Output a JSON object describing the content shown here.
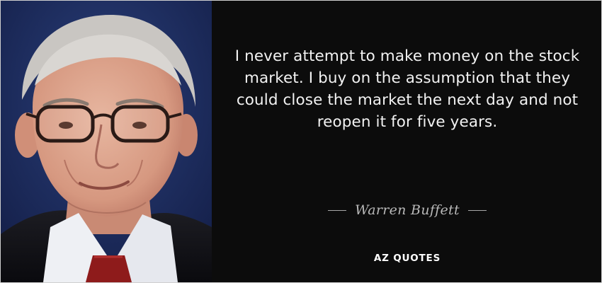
{
  "quote": {
    "text": "I never attempt to make money on the stock market. I buy on the assumption that they could close the market the next day and not reopen it for five years.",
    "author": "Warren Buffett"
  },
  "brand": {
    "name": "AZ QUOTES"
  },
  "portrait": {
    "icon": "person-portrait-icon"
  },
  "colors": {
    "background": "#0c0c0c",
    "portrait_background": "#1b2a5c",
    "quote_text": "#f2f2f2",
    "author_text": "#b9b9b9",
    "brand_text": "#ffffff"
  }
}
